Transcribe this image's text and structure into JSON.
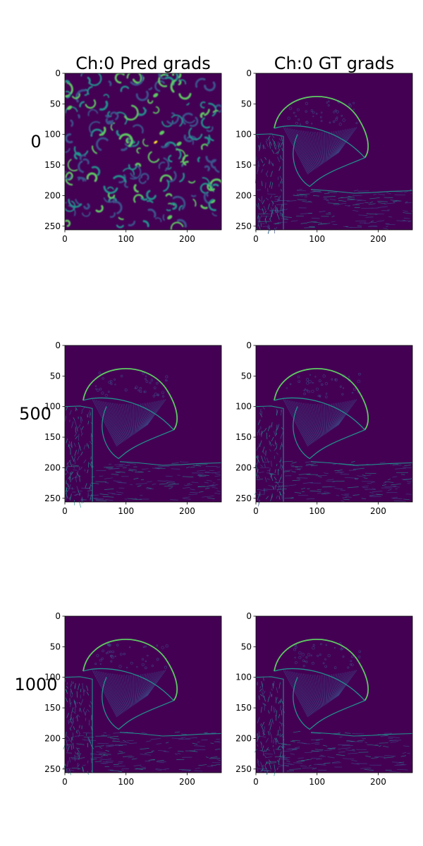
{
  "colors": {
    "background": "#440154",
    "edge_dim": "#3b528b",
    "edge_mid": "#21918c",
    "edge_bright": "#5ec962",
    "edge_peak": "#fde725",
    "axis": "#000000"
  },
  "chart_data": {
    "type": "heatmap",
    "colormap": "viridis",
    "column_titles": [
      "Ch:0 Pred grads",
      "Ch:0 GT grads"
    ],
    "row_labels": [
      "0",
      "500",
      "1000"
    ],
    "x_ticks": [
      0,
      100,
      200
    ],
    "y_ticks": [
      0,
      50,
      100,
      150,
      200,
      250
    ],
    "xlim": [
      0,
      256
    ],
    "ylim": [
      256,
      0
    ],
    "grid": false,
    "panels": [
      {
        "row": "0",
        "column": "Ch:0 Pred grads",
        "content": "noise"
      },
      {
        "row": "0",
        "column": "Ch:0 GT grads",
        "content": "mushroom-edges"
      },
      {
        "row": "500",
        "column": "Ch:0 Pred grads",
        "content": "mushroom-edges"
      },
      {
        "row": "500",
        "column": "Ch:0 GT grads",
        "content": "mushroom-edges"
      },
      {
        "row": "1000",
        "column": "Ch:0 Pred grads",
        "content": "mushroom-edges"
      },
      {
        "row": "1000",
        "column": "Ch:0 GT grads",
        "content": "mushroom-edges"
      }
    ]
  }
}
